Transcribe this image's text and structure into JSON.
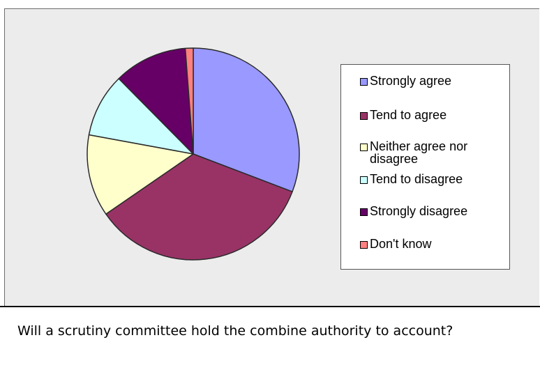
{
  "chart_data": {
    "type": "pie",
    "title": "",
    "slices": [
      {
        "label": "Strongly agree",
        "value": 30.8,
        "color": "#9999ff"
      },
      {
        "label": "Tend to agree",
        "value": 34.6,
        "color": "#993366"
      },
      {
        "label": "Neither agree nor disagree",
        "value": 12.5,
        "color": "#ffffcc"
      },
      {
        "label": "Tend to disagree",
        "value": 9.7,
        "color": "#ccffff"
      },
      {
        "label": "Strongly disagree",
        "value": 11.2,
        "color": "#660066"
      },
      {
        "label": "Don't know",
        "value": 1.2,
        "color": "#ff8080"
      }
    ],
    "legend_position": "right",
    "grid": false
  },
  "caption": "Will a scrutiny committee hold the combine authority to account?"
}
